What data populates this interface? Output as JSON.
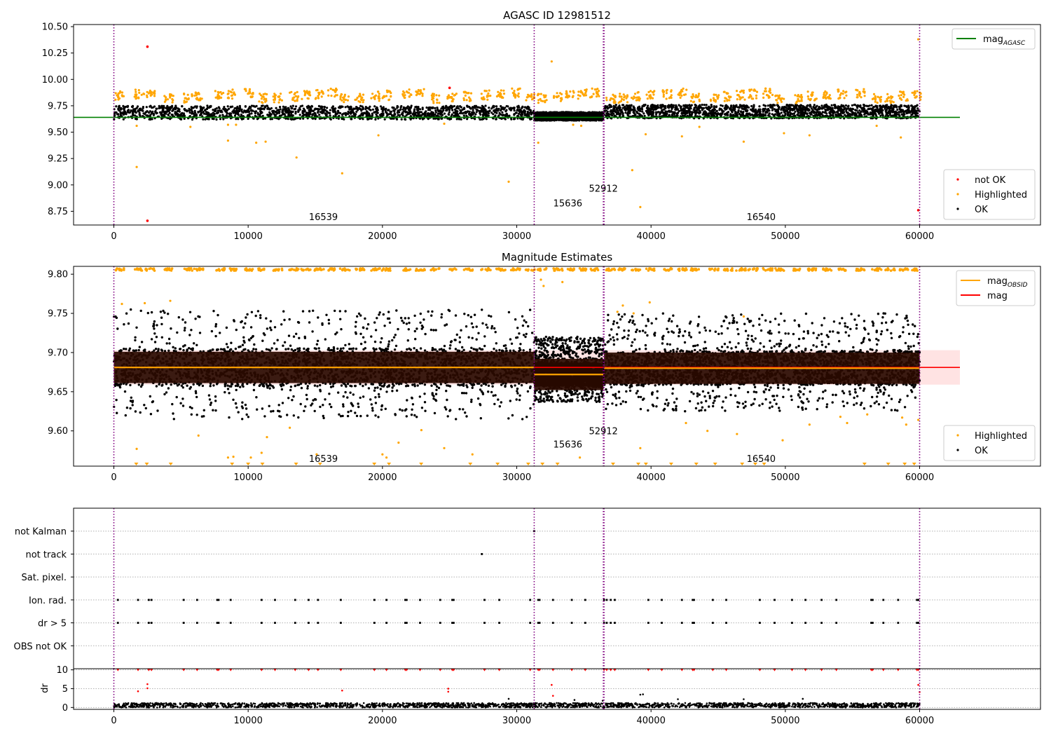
{
  "chart_data": [
    {
      "type": "scatter",
      "title": "AGASC ID 12981512",
      "xlabel": "",
      "ylabel": "",
      "xlim": [
        -3000,
        69000
      ],
      "ylim": [
        8.62,
        10.52
      ],
      "xticks": [
        0,
        10000,
        20000,
        30000,
        40000,
        50000,
        60000
      ],
      "xtick_labels": [
        "0",
        "10000",
        "20000",
        "30000",
        "40000",
        "50000",
        "60000"
      ],
      "yticks": [
        8.75,
        9.0,
        9.25,
        9.5,
        9.75,
        10.0,
        10.25,
        10.5
      ],
      "ytick_labels": [
        "8.75",
        "9.00",
        "9.25",
        "9.50",
        "9.75",
        "10.00",
        "10.25",
        "10.50"
      ],
      "grid": false,
      "obsid_boundaries": [
        0,
        31300,
        36450,
        36500,
        60000
      ],
      "obsid_labels": [
        {
          "text": "16539",
          "x": 15600,
          "y": 8.7
        },
        {
          "text": "15636",
          "x": 33800,
          "y": 8.83
        },
        {
          "text": "52912",
          "x": 36450,
          "y": 8.97
        },
        {
          "text": "16540",
          "x": 48200,
          "y": 8.7
        }
      ],
      "lines": [
        {
          "name": "mag_AGASC",
          "color": "#008000",
          "x": [
            -3000,
            63000
          ],
          "y": [
            9.64,
            9.64
          ]
        }
      ],
      "series": [
        {
          "name": "not OK",
          "color": "#ff0000",
          "x": [
            2500,
            2500,
            25000,
            59900
          ],
          "y": [
            10.31,
            8.66,
            9.92,
            8.76
          ]
        },
        {
          "name": "Highlighted",
          "color": "#ffa500",
          "band_centers_x": [
            400,
            1900,
            2700,
            4100,
            5500,
            6300,
            7900,
            8800,
            10100,
            11100,
            12200,
            13400,
            14300,
            15300,
            16300,
            17200,
            18300,
            19500,
            20300,
            21800,
            22800,
            23900,
            25200,
            26400,
            27700,
            28800,
            29900,
            31000,
            31900,
            33100,
            34000,
            34900,
            35800,
            37000,
            37900,
            38900,
            39900,
            41200,
            42300,
            43300,
            44700,
            45700,
            46700,
            47600,
            48700,
            49600,
            50900,
            52000,
            53100,
            54200,
            55600,
            56800,
            57800,
            58800,
            59800
          ],
          "band_y": [
            9.85,
            9.86,
            9.87,
            9.82,
            9.82,
            9.84
          ],
          "outliers_x": [
            1700,
            1700,
            5700,
            8500,
            8500,
            9100,
            10600,
            11300,
            13600,
            17000,
            19700,
            24600,
            29400,
            31600,
            32600,
            34200,
            34800,
            38600,
            39200,
            39600,
            42300,
            43600,
            46900,
            49900,
            51800,
            56800,
            58600,
            59900
          ],
          "outliers_y": [
            9.56,
            9.17,
            9.55,
            9.42,
            9.57,
            9.57,
            9.4,
            9.41,
            9.26,
            9.11,
            9.47,
            9.58,
            9.03,
            9.4,
            10.17,
            9.57,
            9.56,
            9.14,
            8.79,
            9.48,
            9.46,
            9.55,
            9.41,
            9.49,
            9.47,
            9.56,
            9.45,
            10.38
          ]
        },
        {
          "name": "OK",
          "color": "#000000",
          "segments": [
            {
              "x": [
                0,
                31300
              ],
              "y_low": 9.62,
              "y_high": 9.75
            },
            {
              "x": [
                31300,
                36450
              ],
              "y_low": 9.61,
              "y_high": 9.69
            },
            {
              "x": [
                36500,
                60000
              ],
              "y_low": 9.63,
              "y_high": 9.76
            }
          ]
        }
      ],
      "legends": [
        {
          "placement": "top-right",
          "entries": [
            {
              "label": "mag",
              "subscript": "AGASC",
              "color": "#008000",
              "kind": "line"
            }
          ]
        },
        {
          "placement": "lower-right",
          "entries": [
            {
              "label": "not OK",
              "color": "#ff0000",
              "kind": "dot"
            },
            {
              "label": "Highlighted",
              "color": "#ffa500",
              "kind": "dot"
            },
            {
              "label": "OK",
              "color": "#000000",
              "kind": "dot"
            }
          ]
        }
      ]
    },
    {
      "type": "scatter",
      "title": "Magnitude Estimates",
      "xlabel": "",
      "ylabel": "",
      "xlim": [
        -3000,
        69000
      ],
      "ylim": [
        9.555,
        9.81
      ],
      "xticks": [
        0,
        10000,
        20000,
        30000,
        40000,
        50000,
        60000
      ],
      "xtick_labels": [
        "0",
        "10000",
        "20000",
        "30000",
        "40000",
        "50000",
        "60000"
      ],
      "yticks": [
        9.6,
        9.65,
        9.7,
        9.75,
        9.8
      ],
      "ytick_labels": [
        "9.60",
        "9.65",
        "9.70",
        "9.75",
        "9.80"
      ],
      "grid": false,
      "obsid_boundaries": [
        0,
        31300,
        36450,
        36500,
        60000
      ],
      "obsid_labels": [
        {
          "text": "16539",
          "x": 15600,
          "y": 9.565
        },
        {
          "text": "15636",
          "x": 33800,
          "y": 9.583
        },
        {
          "text": "52912",
          "x": 36450,
          "y": 9.6
        }
      ],
      "obsid_labels_right": [
        {
          "text": "16540",
          "x": 48200,
          "y": 9.565
        }
      ],
      "mag": {
        "value": 9.681,
        "band": [
          9.659,
          9.703
        ],
        "x": [
          0,
          63000
        ],
        "color": "#ff0000"
      },
      "mag_obsid": [
        {
          "x": [
            0,
            31300
          ],
          "value": 9.681
        },
        {
          "x": [
            31300,
            36450
          ],
          "value": 9.672
        },
        {
          "x": [
            36500,
            60000
          ],
          "value": 9.68
        }
      ],
      "series": [
        {
          "name": "Highlighted",
          "color": "#ffa500",
          "top_row_y": 9.806,
          "bottom_row_y": 9.558,
          "outliers_x": [
            600,
            1700,
            2300,
            4200,
            6300,
            8500,
            8900,
            10200,
            11000,
            11400,
            13100,
            15100,
            20000,
            20300,
            21200,
            22900,
            24600,
            26700,
            31800,
            32000,
            33400,
            34700,
            37500,
            37900,
            38700,
            39200,
            39900,
            42600,
            44200,
            46400,
            46900,
            49800,
            51800,
            54100,
            54600,
            56100,
            58700,
            59000,
            59900
          ],
          "outliers_y": [
            9.762,
            9.577,
            9.763,
            9.766,
            9.594,
            9.566,
            9.567,
            9.566,
            9.572,
            9.592,
            9.604,
            9.57,
            9.57,
            9.566,
            9.585,
            9.601,
            9.578,
            9.57,
            9.793,
            9.785,
            9.79,
            9.566,
            9.752,
            9.76,
            9.75,
            9.578,
            9.764,
            9.61,
            9.6,
            9.596,
            9.746,
            9.588,
            9.608,
            9.618,
            9.61,
            9.621,
            9.617,
            9.608,
            9.614
          ]
        },
        {
          "name": "OK",
          "color": "#000000",
          "segments": [
            {
              "x": [
                0,
                31300
              ],
              "y_low": 9.615,
              "y_high": 9.755
            },
            {
              "x": [
                31300,
                36450
              ],
              "y_low": 9.637,
              "y_high": 9.72
            },
            {
              "x": [
                36500,
                60000
              ],
              "y_low": 9.625,
              "y_high": 9.75
            }
          ]
        }
      ],
      "legends": [
        {
          "placement": "top-right",
          "entries": [
            {
              "label": "mag",
              "subscript": "OBSID",
              "color": "#ffa500",
              "kind": "line"
            },
            {
              "label": "mag",
              "subscript": "",
              "color": "#ff0000",
              "kind": "line"
            }
          ]
        },
        {
          "placement": "lower-right",
          "entries": [
            {
              "label": "Highlighted",
              "color": "#ffa500",
              "kind": "dot"
            },
            {
              "label": "OK",
              "color": "#000000",
              "kind": "dot"
            }
          ]
        }
      ]
    },
    {
      "type": "scatter",
      "title": "",
      "xlabel": "",
      "ylabel": "",
      "xlim": [
        -3000,
        69000
      ],
      "categories": [
        "OBS not OK",
        "dr > 5",
        "Ion. rad.",
        "Sat. pixel.",
        "not track",
        "not Kalman"
      ],
      "grid": true,
      "obsid_boundaries": [
        0,
        31300,
        36450,
        36500,
        60000
      ],
      "flags": [
        {
          "category": "Ion. rad.",
          "x": [
            300,
            1800,
            2600,
            2800,
            5200,
            6200,
            7700,
            7800,
            8700,
            11000,
            12000,
            13500,
            14500,
            15200,
            16900,
            19400,
            20300,
            21700,
            21800,
            22800,
            24300,
            25200,
            25300,
            27600,
            28700,
            31000,
            31600,
            31700,
            32700,
            34100,
            35100,
            36500,
            36700,
            37000,
            37300,
            39800,
            40800,
            42300,
            43100,
            43200,
            44600,
            45600,
            48100,
            49200,
            50500,
            51500,
            52700,
            53800,
            56400,
            56500,
            57300,
            58400,
            59800,
            59900
          ]
        },
        {
          "category": "dr > 5",
          "x": [
            300,
            1800,
            2600,
            2800,
            5200,
            6200,
            7700,
            7800,
            8700,
            11000,
            12000,
            13500,
            14500,
            15200,
            16900,
            19400,
            20300,
            21700,
            21800,
            22800,
            24300,
            25200,
            25300,
            27600,
            28700,
            31000,
            31600,
            31700,
            32700,
            34100,
            35100,
            36500,
            36700,
            37000,
            37300,
            39800,
            40800,
            42300,
            43100,
            43200,
            44600,
            45600,
            48100,
            49200,
            50500,
            51500,
            52700,
            53800,
            56400,
            56500,
            57300,
            58400,
            59800,
            59900
          ]
        },
        {
          "category": "not track",
          "x": [
            27400
          ]
        },
        {
          "category": "not Kalman",
          "x": [
            31300
          ]
        }
      ]
    },
    {
      "type": "scatter",
      "title": "",
      "xlabel": "",
      "ylabel": "dr",
      "xlim": [
        -3000,
        69000
      ],
      "ylim": [
        -0.5,
        10.3
      ],
      "xticks": [
        0,
        10000,
        20000,
        30000,
        40000,
        50000,
        60000
      ],
      "xtick_labels": [
        "0",
        "10000",
        "20000",
        "30000",
        "40000",
        "50000",
        "60000"
      ],
      "yticks": [
        0,
        5,
        10
      ],
      "ytick_labels": [
        "0",
        "5",
        "10"
      ],
      "grid": true,
      "obsid_boundaries": [
        0,
        31300,
        36450,
        36500,
        60000
      ],
      "series": [
        {
          "name": "not OK",
          "color": "#ff0000",
          "marker": "triangle",
          "y": 10,
          "x": [
            300,
            1800,
            2600,
            2800,
            5200,
            6200,
            7700,
            7800,
            8700,
            11000,
            12000,
            13500,
            14500,
            15200,
            16900,
            19400,
            20300,
            21700,
            21800,
            22800,
            24300,
            25200,
            25300,
            27600,
            28700,
            31000,
            31600,
            31700,
            32700,
            34100,
            35100,
            36500,
            36700,
            37000,
            37300,
            39800,
            40800,
            42300,
            43100,
            43200,
            44600,
            45600,
            48100,
            49200,
            50500,
            51500,
            52700,
            53800,
            56400,
            56500,
            57300,
            58400,
            59800,
            59900
          ]
        },
        {
          "name": "not OK",
          "color": "#ff0000",
          "x": [
            1800,
            2500,
            2500,
            17000,
            24900,
            24900,
            32600,
            32700,
            59900,
            60000
          ],
          "y": [
            4.3,
            6.2,
            5.1,
            4.5,
            5.0,
            4.2,
            6.0,
            3.1,
            6.0,
            4.1
          ]
        },
        {
          "name": "OK",
          "color": "#000000",
          "segment": {
            "x": [
              0,
              60000
            ],
            "y_low": 0,
            "y_high": 1.2
          },
          "outliers_x": [
            29400,
            34300,
            36400,
            39200,
            39400,
            42000,
            46900,
            51300
          ],
          "outliers_y": [
            2.3,
            2.0,
            1.8,
            3.4,
            3.5,
            2.2,
            2.2,
            2.3
          ]
        }
      ]
    }
  ]
}
